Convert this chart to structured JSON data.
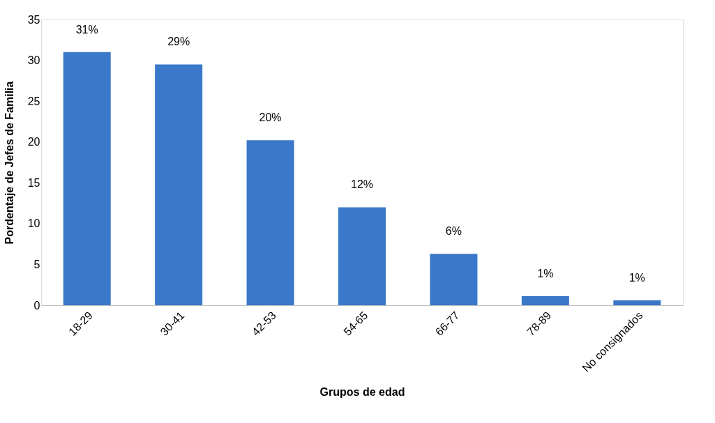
{
  "chart_data": {
    "type": "bar",
    "xlabel": "Grupos de edad",
    "ylabel": "Pordentaje de Jefes de Familia",
    "categories": [
      "18-29",
      "30-41",
      "42-53",
      "54-65",
      "66-77",
      "78-89",
      "No consignados"
    ],
    "values": [
      31,
      29.5,
      20.2,
      12,
      6.3,
      1.1,
      0.6
    ],
    "value_labels": [
      "31%",
      "29%",
      "20%",
      "12%",
      "6%",
      "1%",
      "1%"
    ],
    "color": "#3a78c9",
    "ylim": [
      0,
      35
    ],
    "yticks": [
      0,
      5,
      10,
      15,
      20,
      25,
      30,
      35
    ],
    "grid": false
  }
}
